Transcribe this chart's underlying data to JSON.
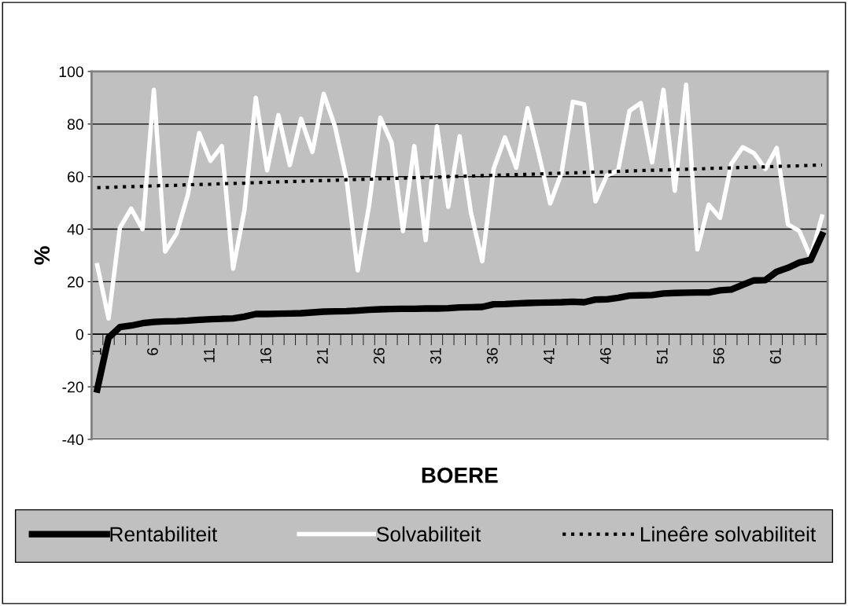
{
  "chart_data": {
    "type": "line",
    "xlabel": "BOERE",
    "ylabel": "%",
    "categories": [
      "1",
      null,
      null,
      null,
      null,
      "6",
      null,
      null,
      null,
      null,
      "11",
      null,
      null,
      null,
      null,
      "16",
      null,
      null,
      null,
      null,
      "21",
      null,
      null,
      null,
      null,
      "26",
      null,
      null,
      null,
      null,
      "31",
      null,
      null,
      null,
      null,
      "36",
      null,
      null,
      null,
      null,
      "41",
      null,
      null,
      null,
      null,
      "46",
      null,
      null,
      null,
      null,
      "51",
      null,
      null,
      null,
      null,
      "56",
      null,
      null,
      null,
      null,
      "61",
      null,
      null,
      null,
      null
    ],
    "ylim": [
      -40,
      100
    ],
    "yticks": [
      -40,
      -20,
      0,
      20,
      40,
      60,
      80,
      100
    ],
    "grid": "y",
    "legend": "bottom",
    "marker": "none",
    "series": [
      {
        "name": "Rentabiliteit",
        "color": "#000000",
        "values": [
          -21,
          -1.3,
          2.7,
          3.3,
          4.2,
          4.7,
          4.9,
          5,
          5.2,
          5.5,
          5.7,
          5.9,
          6,
          6.7,
          7.7,
          7.7,
          7.8,
          7.9,
          8,
          8.3,
          8.6,
          8.7,
          8.8,
          9,
          9.3,
          9.5,
          9.6,
          9.7,
          9.7,
          9.8,
          9.8,
          9.9,
          10.2,
          10.3,
          10.4,
          11.4,
          11.5,
          11.7,
          11.9,
          12,
          12.1,
          12.2,
          12.4,
          12.2,
          13.2,
          13.3,
          13.9,
          14.7,
          14.8,
          14.9,
          15.5,
          15.7,
          15.8,
          15.9,
          15.9,
          16.7,
          17,
          18.8,
          20.5,
          20.6,
          23.8,
          25.3,
          27.3,
          28.3,
          37.8
        ]
      },
      {
        "name": "Solvabiliteit",
        "color": "#ffffff",
        "values": [
          26.3,
          6,
          40.5,
          47.8,
          40,
          93,
          31.5,
          38.3,
          53,
          76.6,
          66,
          71.6,
          25,
          47.3,
          90,
          62.4,
          83.4,
          64.4,
          82,
          69.4,
          91.5,
          79,
          59.4,
          24.3,
          48.8,
          82.4,
          72.9,
          39.3,
          71.6,
          35.8,
          79.1,
          48.5,
          75.4,
          46.3,
          27.8,
          62.9,
          74.9,
          63.4,
          86,
          68.4,
          49.8,
          61.4,
          88.5,
          87.5,
          50.6,
          60.4,
          62.4,
          85,
          88,
          65.4,
          93,
          54.6,
          95,
          32.3,
          49.3,
          44.3,
          64.9,
          71.2,
          68.9,
          62.9,
          70.9,
          41.8,
          39.3,
          29.3,
          44.8
        ]
      },
      {
        "name": "Lineêre solvabiliteit",
        "color": "#000000",
        "line_style": "dotted",
        "values": [
          55.8,
          55.9,
          56.1,
          56.2,
          56.3,
          56.5,
          56.6,
          56.7,
          56.9,
          57.0,
          57.1,
          57.3,
          57.4,
          57.5,
          57.7,
          57.8,
          58.0,
          58.1,
          58.2,
          58.4,
          58.5,
          58.6,
          58.8,
          58.9,
          59.0,
          59.2,
          59.3,
          59.4,
          59.6,
          59.7,
          59.8,
          60.0,
          60.1,
          60.2,
          60.4,
          60.5,
          60.6,
          60.8,
          60.9,
          61.0,
          61.2,
          61.3,
          61.4,
          61.6,
          61.7,
          61.8,
          62.0,
          62.1,
          62.3,
          62.4,
          62.5,
          62.7,
          62.8,
          62.9,
          63.1,
          63.2,
          63.3,
          63.5,
          63.6,
          63.7,
          63.9,
          64.0,
          64.1,
          64.3,
          64.4
        ]
      }
    ]
  }
}
